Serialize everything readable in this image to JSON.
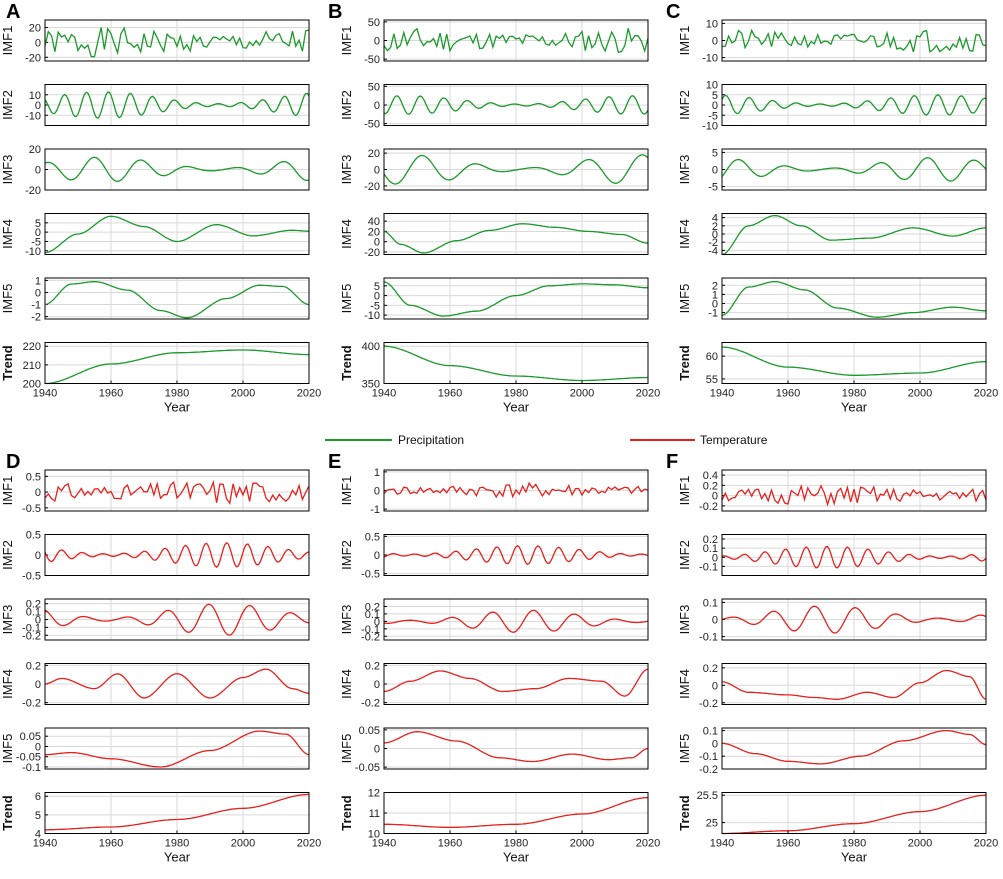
{
  "chart_data": {
    "type": "line",
    "x_label": "Year",
    "x_range": [
      1940,
      2020
    ],
    "x_ticks": [
      1940,
      1960,
      1980,
      2000,
      2020
    ],
    "grid": true,
    "legend": {
      "placement": "center",
      "entries": [
        {
          "label": "Precipitation",
          "color": "#1a9a2a"
        },
        {
          "label": "Temperature",
          "color": "#e8201c"
        }
      ]
    },
    "panels": [
      {
        "letter": "A",
        "color": "#1a9a2a",
        "rows": [
          {
            "label": "IMF1",
            "ylim": [
              -25,
              30
            ],
            "ticks": [
              20,
              0,
              -20
            ],
            "kind": "osc",
            "amp": 20,
            "freq": 0.33
          },
          {
            "label": "IMF2",
            "ylim": [
              -20,
              20
            ],
            "ticks": [
              10,
              0,
              -10
            ],
            "kind": "osc",
            "amp": 13,
            "freq": 0.15
          },
          {
            "label": "IMF3",
            "ylim": [
              -20,
              20
            ],
            "ticks": [
              20,
              0,
              -20
            ],
            "kind": "osc",
            "amp": 12,
            "freq": 0.07
          },
          {
            "label": "IMF4",
            "ylim": [
              -12,
              10
            ],
            "ticks": [
              5,
              0,
              -5,
              -10
            ],
            "kind": "pts",
            "x": [
              1940,
              1950,
              1960,
              1970,
              1980,
              1992,
              2003,
              2015,
              2020
            ],
            "y": [
              -11,
              -1,
              8.5,
              3,
              -5,
              4,
              -2,
              1,
              0.5
            ]
          },
          {
            "label": "IMF5",
            "ylim": [
              -2.2,
              1.2
            ],
            "ticks": [
              1,
              0,
              -1,
              -2
            ],
            "kind": "pts",
            "x": [
              1940,
              1948,
              1955,
              1965,
              1975,
              1983,
              1995,
              2005,
              2012,
              2020
            ],
            "y": [
              -1,
              0.7,
              0.9,
              0.2,
              -1.5,
              -2.1,
              -0.5,
              0.6,
              0.5,
              -1
            ]
          },
          {
            "label": "Trend",
            "ylim": [
              200,
              222
            ],
            "ticks": [
              220,
              210,
              200
            ],
            "kind": "pts",
            "x": [
              1940,
              1960,
              1980,
              2000,
              2020
            ],
            "y": [
              200,
              210.5,
              216.5,
              218,
              215.5
            ]
          }
        ]
      },
      {
        "letter": "B",
        "color": "#1a9a2a",
        "rows": [
          {
            "label": "IMF1",
            "ylim": [
              -55,
              55
            ],
            "ticks": [
              50,
              0,
              -50
            ],
            "kind": "osc",
            "amp": 35,
            "freq": 0.34
          },
          {
            "label": "IMF2",
            "ylim": [
              -55,
              55
            ],
            "ticks": [
              50,
              0,
              -50
            ],
            "kind": "osc",
            "amp": 25,
            "freq": 0.14
          },
          {
            "label": "IMF3",
            "ylim": [
              -25,
              25
            ],
            "ticks": [
              20,
              0,
              -20
            ],
            "kind": "osc",
            "amp": 18,
            "freq": 0.06
          },
          {
            "label": "IMF4",
            "ylim": [
              -25,
              55
            ],
            "ticks": [
              40,
              20,
              0,
              -20
            ],
            "kind": "pts",
            "x": [
              1940,
              1945,
              1952,
              1962,
              1972,
              1982,
              1992,
              2002,
              2012,
              2020
            ],
            "y": [
              20,
              -5,
              -22,
              2,
              22,
              35,
              28,
              20,
              14,
              -3
            ]
          },
          {
            "label": "IMF5",
            "ylim": [
              -12,
              9
            ],
            "ticks": [
              5,
              0,
              -5,
              -10
            ],
            "kind": "pts",
            "x": [
              1940,
              1948,
              1958,
              1968,
              1980,
              1990,
              2000,
              2010,
              2020
            ],
            "y": [
              7,
              -5,
              -10.5,
              -8,
              0,
              5,
              6,
              5.5,
              4
            ]
          },
          {
            "label": "Trend",
            "ylim": [
              350,
              405
            ],
            "ticks": [
              400,
              350
            ],
            "kind": "pts",
            "x": [
              1940,
              1960,
              1980,
              2000,
              2020
            ],
            "y": [
              400,
              374,
              360,
              354,
              358
            ]
          }
        ]
      },
      {
        "letter": "C",
        "color": "#1a9a2a",
        "rows": [
          {
            "label": "IMF1",
            "ylim": [
              -12,
              12
            ],
            "ticks": [
              10,
              0,
              -10
            ],
            "kind": "osc",
            "amp": 7,
            "freq": 0.32
          },
          {
            "label": "IMF2",
            "ylim": [
              -10,
              10
            ],
            "ticks": [
              10,
              5,
              0,
              -5,
              -10
            ],
            "kind": "osc",
            "amp": 5,
            "freq": 0.14
          },
          {
            "label": "IMF3",
            "ylim": [
              -6,
              6
            ],
            "ticks": [
              5,
              0,
              -5
            ],
            "kind": "osc",
            "amp": 3.5,
            "freq": 0.07
          },
          {
            "label": "IMF4",
            "ylim": [
              -5,
              5
            ],
            "ticks": [
              4,
              2,
              0,
              -2,
              -4
            ],
            "kind": "pts",
            "x": [
              1940,
              1948,
              1956,
              1964,
              1973,
              1985,
              1998,
              2010,
              2020
            ],
            "y": [
              -5,
              2,
              4.5,
              2,
              -1.5,
              -1,
              1.5,
              -0.5,
              1.5
            ]
          },
          {
            "label": "IMF5",
            "ylim": [
              -1.7,
              2.8
            ],
            "ticks": [
              2,
              1,
              0,
              -1
            ],
            "kind": "pts",
            "x": [
              1940,
              1948,
              1956,
              1965,
              1975,
              1987,
              1998,
              2010,
              2020
            ],
            "y": [
              -1.3,
              1.8,
              2.4,
              1.5,
              -0.5,
              -1.5,
              -1,
              -0.4,
              -0.8
            ]
          },
          {
            "label": "Trend",
            "ylim": [
              54,
              63
            ],
            "ticks": [
              60,
              55
            ],
            "kind": "pts",
            "x": [
              1940,
              1960,
              1980,
              2000,
              2020
            ],
            "y": [
              62,
              57.6,
              55.8,
              56.3,
              58.8
            ]
          }
        ]
      },
      {
        "letter": "D",
        "color": "#e8201c",
        "rows": [
          {
            "label": "IMF1",
            "ylim": [
              -0.6,
              0.7
            ],
            "ticks": [
              0.5,
              0,
              -0.5
            ],
            "kind": "osc",
            "amp": 0.4,
            "freq": 0.36
          },
          {
            "label": "IMF2",
            "ylim": [
              -0.5,
              0.5
            ],
            "ticks": [
              0.5,
              0,
              -0.5
            ],
            "kind": "osc",
            "amp": 0.3,
            "freq": 0.16
          },
          {
            "label": "IMF3",
            "ylim": [
              -0.26,
              0.26
            ],
            "ticks": [
              0.2,
              0.1,
              0,
              -0.1,
              -0.2
            ],
            "kind": "osc",
            "amp": 0.2,
            "freq": 0.08
          },
          {
            "label": "IMF4",
            "ylim": [
              -0.22,
              0.22
            ],
            "ticks": [
              0.2,
              0,
              -0.2
            ],
            "kind": "pts",
            "x": [
              1940,
              1945,
              1955,
              1962,
              1970,
              1980,
              1990,
              2000,
              2007,
              2015,
              2020
            ],
            "y": [
              0,
              0.06,
              -0.05,
              0.11,
              -0.15,
              0.11,
              -0.15,
              0.07,
              0.16,
              -0.05,
              -0.1
            ]
          },
          {
            "label": "IMF5",
            "ylim": [
              -0.11,
              0.09
            ],
            "ticks": [
              0.05,
              0,
              -0.05,
              -0.1
            ],
            "kind": "pts",
            "x": [
              1940,
              1948,
              1960,
              1975,
              1990,
              2005,
              2013,
              2020
            ],
            "y": [
              -0.04,
              -0.03,
              -0.06,
              -0.1,
              -0.02,
              0.075,
              0.06,
              -0.04
            ]
          },
          {
            "label": "Trend",
            "ylim": [
              4,
              6.2
            ],
            "ticks": [
              6,
              5,
              4
            ],
            "kind": "pts",
            "x": [
              1940,
              1960,
              1980,
              2000,
              2020
            ],
            "y": [
              4.2,
              4.35,
              4.75,
              5.35,
              6.1
            ]
          }
        ]
      },
      {
        "letter": "E",
        "color": "#e8201c",
        "rows": [
          {
            "label": "IMF1",
            "ylim": [
              -1.1,
              1.1
            ],
            "ticks": [
              1,
              0,
              -1
            ],
            "kind": "osc",
            "amp": 0.4,
            "freq": 0.35
          },
          {
            "label": "IMF2",
            "ylim": [
              -0.55,
              0.55
            ],
            "ticks": [
              0.5,
              0,
              -0.5
            ],
            "kind": "osc",
            "amp": 0.25,
            "freq": 0.16
          },
          {
            "label": "IMF3",
            "ylim": [
              -0.25,
              0.3
            ],
            "ticks": [
              0.2,
              0.1,
              0,
              -0.1,
              -0.2
            ],
            "kind": "osc",
            "amp": 0.15,
            "freq": 0.08
          },
          {
            "label": "IMF4",
            "ylim": [
              -0.22,
              0.22
            ],
            "ticks": [
              0.2,
              0,
              -0.2
            ],
            "kind": "pts",
            "x": [
              1940,
              1948,
              1957,
              1966,
              1976,
              1986,
              1996,
              2006,
              2013,
              2020
            ],
            "y": [
              -0.08,
              0.03,
              0.14,
              0.06,
              -0.08,
              -0.05,
              0.06,
              0.03,
              -0.13,
              0.16
            ]
          },
          {
            "label": "IMF5",
            "ylim": [
              -0.055,
              0.055
            ],
            "ticks": [
              0.05,
              0,
              -0.05
            ],
            "kind": "pts",
            "x": [
              1940,
              1950,
              1962,
              1975,
              1985,
              1997,
              2008,
              2015,
              2020
            ],
            "y": [
              0.015,
              0.045,
              0.02,
              -0.025,
              -0.035,
              -0.015,
              -0.03,
              -0.025,
              0
            ]
          },
          {
            "label": "Trend",
            "ylim": [
              10,
              12
            ],
            "ticks": [
              12,
              11,
              10
            ],
            "kind": "pts",
            "x": [
              1940,
              1960,
              1980,
              2000,
              2020
            ],
            "y": [
              10.45,
              10.3,
              10.45,
              10.95,
              11.75
            ]
          }
        ]
      },
      {
        "letter": "F",
        "color": "#e8201c",
        "rows": [
          {
            "label": "IMF1",
            "ylim": [
              -0.3,
              0.5
            ],
            "ticks": [
              0.4,
              0.2,
              0,
              -0.2
            ],
            "kind": "osc",
            "amp": 0.2,
            "freq": 0.36
          },
          {
            "label": "IMF2",
            "ylim": [
              -0.2,
              0.25
            ],
            "ticks": [
              0.2,
              0.1,
              0,
              -0.1
            ],
            "kind": "osc",
            "amp": 0.12,
            "freq": 0.16
          },
          {
            "label": "IMF3",
            "ylim": [
              -0.12,
              0.12
            ],
            "ticks": [
              0.1,
              0,
              -0.1
            ],
            "kind": "osc",
            "amp": 0.08,
            "freq": 0.08
          },
          {
            "label": "IMF4",
            "ylim": [
              -0.22,
              0.25
            ],
            "ticks": [
              0.2,
              0,
              -0.2
            ],
            "kind": "pts",
            "x": [
              1940,
              1948,
              1960,
              1968,
              1975,
              1984,
              1992,
              2000,
              2008,
              2015,
              2020
            ],
            "y": [
              0.04,
              -0.08,
              -0.11,
              -0.14,
              -0.16,
              -0.08,
              -0.14,
              0.03,
              0.17,
              0.1,
              -0.16
            ]
          },
          {
            "label": "IMF5",
            "ylim": [
              -0.2,
              0.12
            ],
            "ticks": [
              0.1,
              0,
              -0.1,
              -0.2
            ],
            "kind": "pts",
            "x": [
              1940,
              1950,
              1960,
              1970,
              1982,
              1995,
              2008,
              2015,
              2020
            ],
            "y": [
              0,
              -0.08,
              -0.14,
              -0.16,
              -0.1,
              0.02,
              0.1,
              0.07,
              -0.01
            ]
          },
          {
            "label": "Trend",
            "ylim": [
              24.8,
              25.55
            ],
            "ticks": [
              25.5,
              25
            ],
            "kind": "pts",
            "x": [
              1940,
              1960,
              1980,
              2000,
              2020
            ],
            "y": [
              24.8,
              24.85,
              24.98,
              25.2,
              25.5
            ]
          }
        ]
      }
    ]
  }
}
